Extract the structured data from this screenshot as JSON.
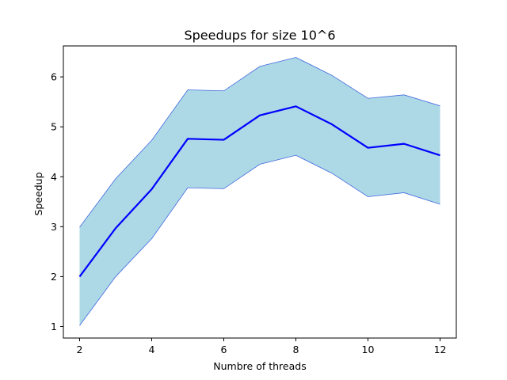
{
  "chart_data": {
    "type": "line",
    "title": "Speedups for size 10^6",
    "xlabel": "Numbre of threads",
    "ylabel": "Speedup",
    "xlim": [
      1.55,
      12.45
    ],
    "ylim": [
      0.77,
      6.62
    ],
    "xticks": [
      2,
      4,
      6,
      8,
      10,
      12
    ],
    "yticks": [
      1,
      2,
      3,
      4,
      5,
      6
    ],
    "grid": false,
    "x": [
      2,
      3,
      4,
      5,
      6,
      7,
      8,
      9,
      10,
      11,
      12
    ],
    "series": [
      {
        "role": "mean",
        "values": [
          2.0,
          2.97,
          3.75,
          4.76,
          4.74,
          5.23,
          5.41,
          5.05,
          4.58,
          4.66,
          4.43
        ]
      },
      {
        "role": "upper",
        "values": [
          2.99,
          3.96,
          4.73,
          5.74,
          5.72,
          6.21,
          6.39,
          6.03,
          5.57,
          5.64,
          5.42
        ]
      },
      {
        "role": "lower",
        "values": [
          1.02,
          2.0,
          2.76,
          3.78,
          3.76,
          4.25,
          4.43,
          4.07,
          3.6,
          3.68,
          3.45
        ]
      }
    ],
    "colors": {
      "band_fill": "#add8e6",
      "band_edge": "#4169e1",
      "mean_line": "#0000ff",
      "axes": "#000000"
    }
  }
}
